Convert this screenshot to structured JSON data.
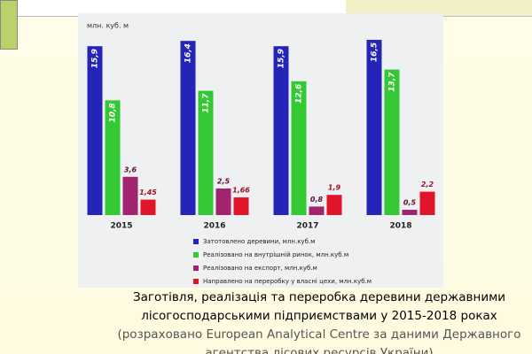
{
  "chart_data": {
    "type": "bar",
    "unit_label": "млн. куб. м",
    "categories": [
      "2015",
      "2016",
      "2017",
      "2018"
    ],
    "series": [
      {
        "name": "Затотовлено деревини, млн.куб.м",
        "color": "#2424b8",
        "values": [
          15.9,
          16.4,
          15.9,
          16.5
        ],
        "value_labels": [
          "15,9",
          "16,4",
          "15,9",
          "16,5"
        ]
      },
      {
        "name": "Реалізовано на внутрішній ринок, млн.куб.м",
        "color": "#34c934",
        "values": [
          10.8,
          11.7,
          12.6,
          13.7
        ],
        "value_labels": [
          "10,8",
          "11,7",
          "12,6",
          "13,7"
        ]
      },
      {
        "name": "Реалізовано на експорт, млн.куб.м",
        "color": "#a3246e",
        "values": [
          3.6,
          2.5,
          0.8,
          0.5
        ],
        "value_labels": [
          "3,6",
          "2,5",
          "0,8",
          "0,5"
        ]
      },
      {
        "name": "Направлено на переробку у власні цехи, млн.куб.м",
        "color": "#e2142a",
        "values": [
          1.45,
          1.66,
          1.9,
          2.2
        ],
        "value_labels": [
          "1,45",
          "1,66",
          "1,9",
          "2,2"
        ]
      }
    ]
  },
  "caption": {
    "main": "Заготівля, реалізація та переробка деревини державними лісогосподарськими підприємствами у 2015-2018 роках",
    "source": "(розраховано European Analytical Centre за даними Державного агентства лісових ресурсів України)"
  }
}
